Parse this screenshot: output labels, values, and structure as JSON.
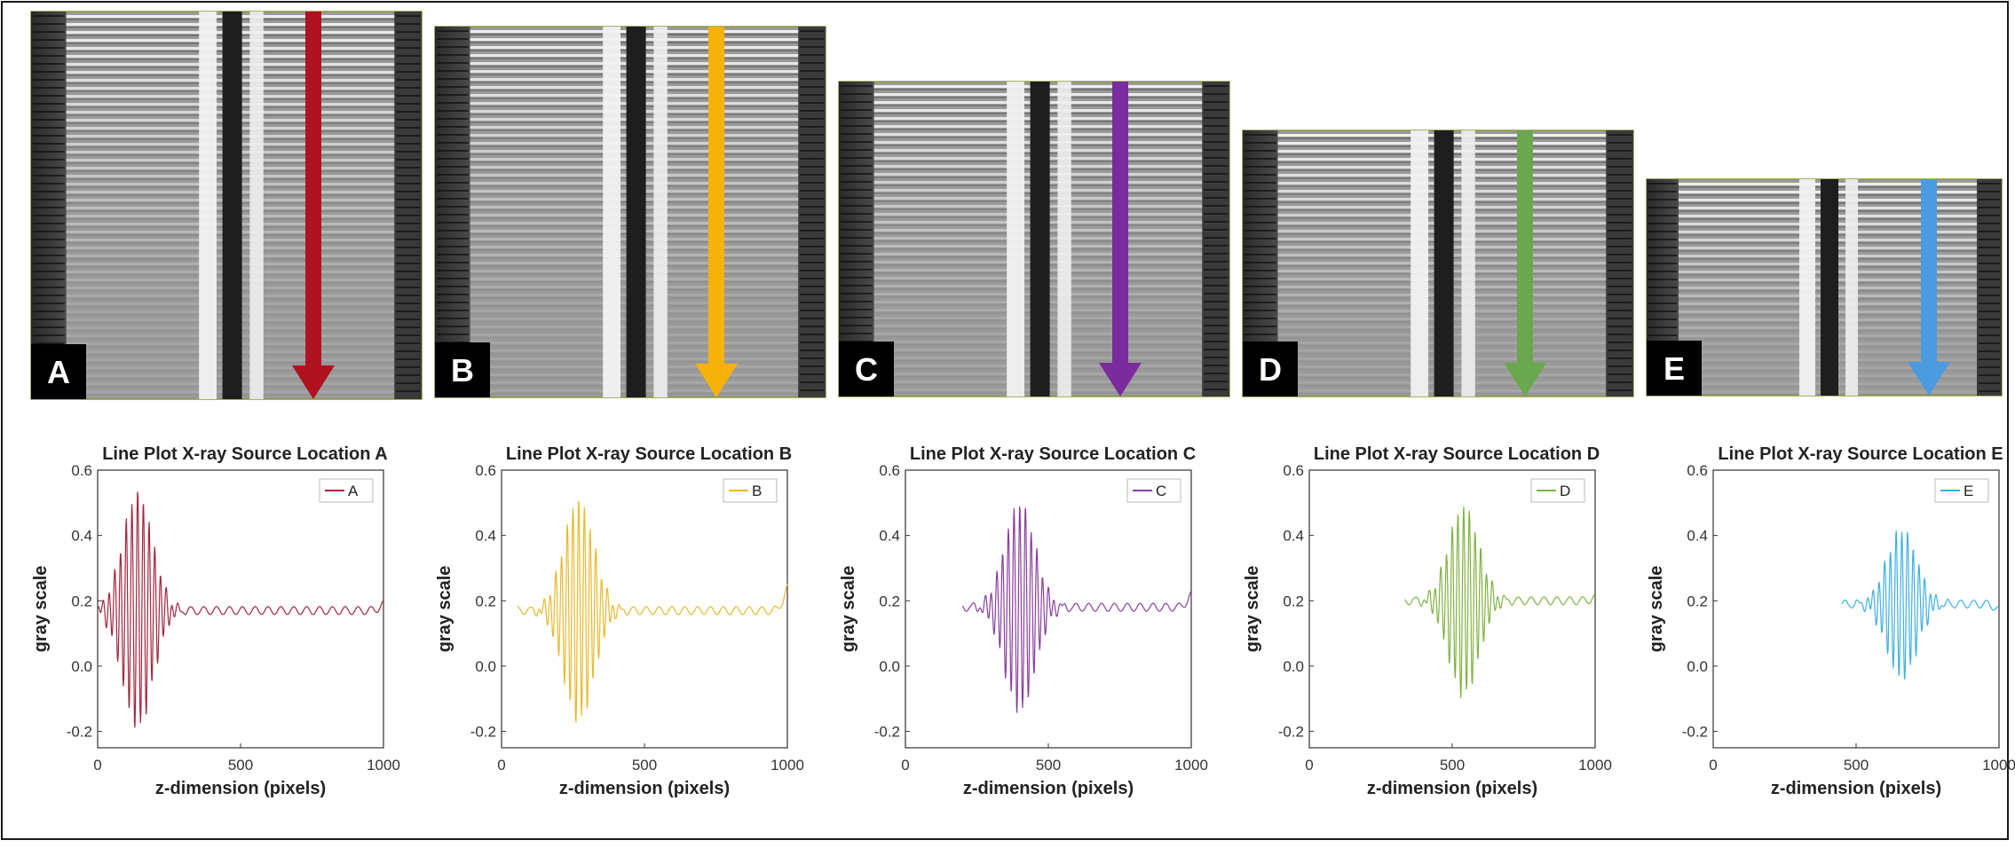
{
  "panels": [
    {
      "letter": "A",
      "color": "#b0131f"
    },
    {
      "letter": "B",
      "color": "#f6b20a"
    },
    {
      "letter": "C",
      "color": "#7a2c9e"
    },
    {
      "letter": "D",
      "color": "#6aa84f"
    },
    {
      "letter": "E",
      "color": "#4a9be0"
    }
  ],
  "chart_data": [
    {
      "type": "line",
      "title": "Line Plot X-ray Source Location A",
      "xlabel": "z-dimension (pixels)",
      "ylabel": "gray scale",
      "xlim": [
        0,
        1000
      ],
      "ylim": [
        -0.25,
        0.6
      ],
      "xticks": [
        0,
        500,
        1000
      ],
      "yticks": [
        -0.2,
        0.0,
        0.2,
        0.4,
        0.6
      ],
      "ytick_labels": [
        "-0.2",
        "0.0",
        "0.2",
        "0.4",
        "0.6"
      ],
      "grid": false,
      "legend": "top-right",
      "series": [
        {
          "name": "A",
          "color": "#a3263c",
          "x_start": 0,
          "x_end": 1000,
          "center": 140,
          "baseline": 0.17,
          "peak_amplitude": 0.36,
          "envelope_width": 75,
          "period": 20,
          "tail_end_value": 0.19
        }
      ]
    },
    {
      "type": "line",
      "title": "Line Plot X-ray Source Location B",
      "xlabel": "z-dimension (pixels)",
      "ylabel": "gray scale",
      "xlim": [
        0,
        1000
      ],
      "ylim": [
        -0.25,
        0.6
      ],
      "xticks": [
        0,
        500,
        1000
      ],
      "yticks": [
        -0.2,
        0.0,
        0.2,
        0.4,
        0.6
      ],
      "ytick_labels": [
        "-0.2",
        "0.0",
        "0.2",
        "0.4",
        "0.6"
      ],
      "grid": false,
      "legend": "top-right",
      "series": [
        {
          "name": "B",
          "color": "#e8b92c",
          "x_start": 55,
          "x_end": 1000,
          "center": 270,
          "baseline": 0.17,
          "peak_amplitude": 0.34,
          "envelope_width": 75,
          "period": 20,
          "tail_end_value": 0.24
        }
      ]
    },
    {
      "type": "line",
      "title": "Line Plot X-ray Source Location C",
      "xlabel": "z-dimension (pixels)",
      "ylabel": "gray scale",
      "xlim": [
        0,
        1000
      ],
      "ylim": [
        -0.25,
        0.6
      ],
      "xticks": [
        0,
        500,
        1000
      ],
      "yticks": [
        -0.2,
        0.0,
        0.2,
        0.4,
        0.6
      ],
      "ytick_labels": [
        "-0.2",
        "0.0",
        "0.2",
        "0.4",
        "0.6"
      ],
      "grid": false,
      "legend": "top-right",
      "series": [
        {
          "name": "C",
          "color": "#8a3e9e",
          "x_start": 200,
          "x_end": 1000,
          "center": 400,
          "baseline": 0.18,
          "peak_amplitude": 0.32,
          "envelope_width": 75,
          "period": 20,
          "tail_end_value": 0.22
        }
      ]
    },
    {
      "type": "line",
      "title": "Line Plot X-ray Source Location D",
      "xlabel": "z-dimension (pixels)",
      "ylabel": "gray scale",
      "xlim": [
        0,
        1000
      ],
      "ylim": [
        -0.25,
        0.6
      ],
      "xticks": [
        0,
        500,
        1000
      ],
      "yticks": [
        -0.2,
        0.0,
        0.2,
        0.4,
        0.6
      ],
      "ytick_labels": [
        "-0.2",
        "0.0",
        "0.2",
        "0.4",
        "0.6"
      ],
      "grid": false,
      "legend": "top-right",
      "series": [
        {
          "name": "D",
          "color": "#7fb241",
          "x_start": 335,
          "x_end": 1000,
          "center": 540,
          "baseline": 0.2,
          "peak_amplitude": 0.29,
          "envelope_width": 75,
          "period": 20,
          "tail_end_value": 0.21
        }
      ]
    },
    {
      "type": "line",
      "title": "Line Plot X-ray Source Location E",
      "xlabel": "z-dimension (pixels)",
      "ylabel": "gray scale",
      "xlim": [
        0,
        1000
      ],
      "ylim": [
        -0.25,
        0.6
      ],
      "xticks": [
        0,
        500,
        1000
      ],
      "yticks": [
        -0.2,
        0.0,
        0.2,
        0.4,
        0.6
      ],
      "ytick_labels": [
        "-0.2",
        "0.0",
        "0.2",
        "0.4",
        "0.6"
      ],
      "grid": false,
      "legend": "top-right",
      "series": [
        {
          "name": "E",
          "color": "#3fb0e0",
          "x_start": 450,
          "x_end": 1000,
          "center": 660,
          "baseline": 0.19,
          "peak_amplitude": 0.23,
          "envelope_width": 75,
          "period": 20,
          "tail_end_value": 0.17
        }
      ]
    }
  ]
}
